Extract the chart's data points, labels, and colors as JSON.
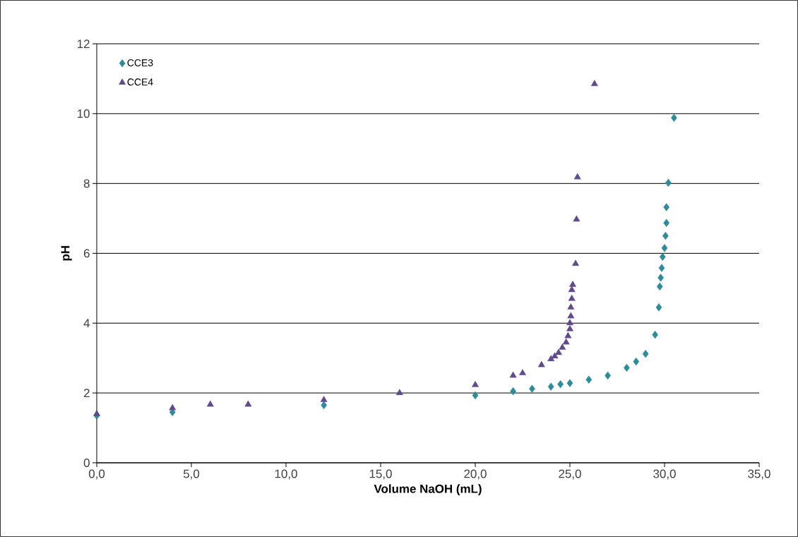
{
  "chart_data": {
    "type": "scatter",
    "xlabel": "Volume  NaOH (mL)",
    "ylabel": "pH",
    "xlim": [
      0,
      35
    ],
    "ylim": [
      0,
      12
    ],
    "xticks": [
      {
        "value": 0,
        "label": "0,0"
      },
      {
        "value": 5,
        "label": "5,0"
      },
      {
        "value": 10,
        "label": "10,0"
      },
      {
        "value": 15,
        "label": "15,0"
      },
      {
        "value": 20,
        "label": "20,0"
      },
      {
        "value": 25,
        "label": "25,0"
      },
      {
        "value": 30,
        "label": "30,0"
      },
      {
        "value": 35,
        "label": "35,0"
      }
    ],
    "yticks": [
      0,
      2,
      4,
      6,
      8,
      10,
      12
    ],
    "grid": "y",
    "legend": "top left",
    "series": [
      {
        "name": "CCE3",
        "color": "#2e8b9a",
        "marker": "diamond",
        "x": [
          0,
          4,
          12,
          20,
          22,
          23,
          24,
          24.5,
          25,
          26,
          27,
          28,
          28.5,
          29,
          29.5,
          29.7,
          29.75,
          29.8,
          29.85,
          29.9,
          30,
          30.05,
          30.1,
          30.1,
          30.2,
          30.5
        ],
        "values": [
          1.35,
          1.45,
          1.65,
          1.93,
          2.05,
          2.12,
          2.18,
          2.25,
          2.28,
          2.38,
          2.5,
          2.72,
          2.9,
          3.12,
          3.67,
          4.45,
          5.05,
          5.3,
          5.58,
          5.9,
          6.15,
          6.5,
          6.87,
          7.32,
          8.02,
          9.88
        ]
      },
      {
        "name": "CCE4",
        "color": "#5f4b8b",
        "marker": "triangle",
        "x": [
          0,
          4,
          6,
          8,
          12,
          16,
          20,
          22,
          22.5,
          23.5,
          24,
          24.2,
          24.4,
          24.6,
          24.8,
          24.9,
          25.0,
          25.0,
          25.05,
          25.05,
          25.1,
          25.1,
          25.15,
          25.3,
          25.35,
          25.4,
          26.3
        ],
        "values": [
          1.4,
          1.57,
          1.67,
          1.67,
          1.8,
          2.0,
          2.23,
          2.5,
          2.57,
          2.8,
          2.97,
          3.05,
          3.15,
          3.3,
          3.45,
          3.63,
          3.83,
          4.0,
          4.2,
          4.45,
          4.7,
          4.95,
          5.1,
          5.7,
          6.97,
          8.18,
          10.85
        ]
      }
    ]
  }
}
